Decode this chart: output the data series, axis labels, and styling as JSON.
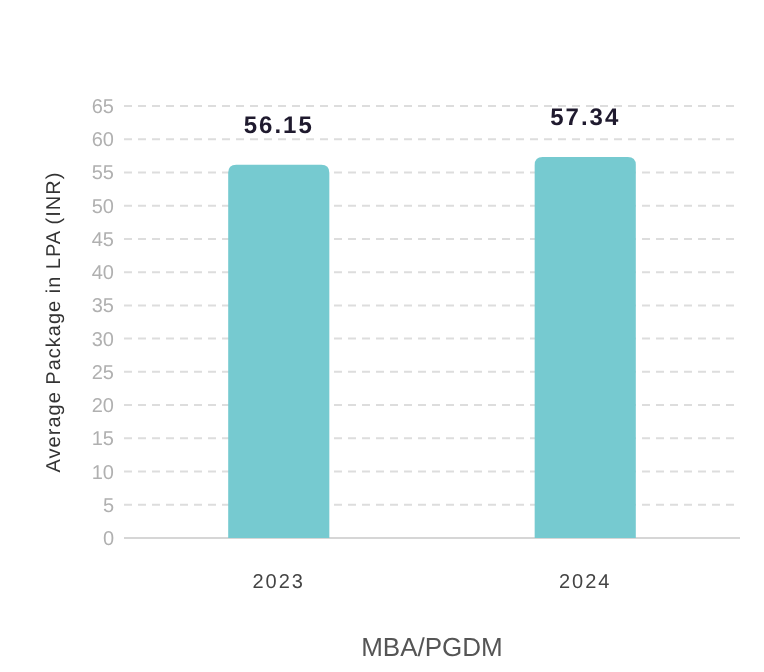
{
  "chart_data": {
    "type": "bar",
    "xlabel": "MBA/PGDM",
    "ylabel": "Average Package in LPA (INR)",
    "categories": [
      "2023",
      "2024"
    ],
    "values": [
      56.15,
      57.34
    ],
    "color": "#76cad0",
    "ylim": [
      0,
      65
    ],
    "yticks": [
      0,
      5,
      10,
      15,
      20,
      25,
      30,
      35,
      40,
      45,
      50,
      55,
      60,
      65
    ],
    "grid": "y",
    "data_labels": true
  }
}
